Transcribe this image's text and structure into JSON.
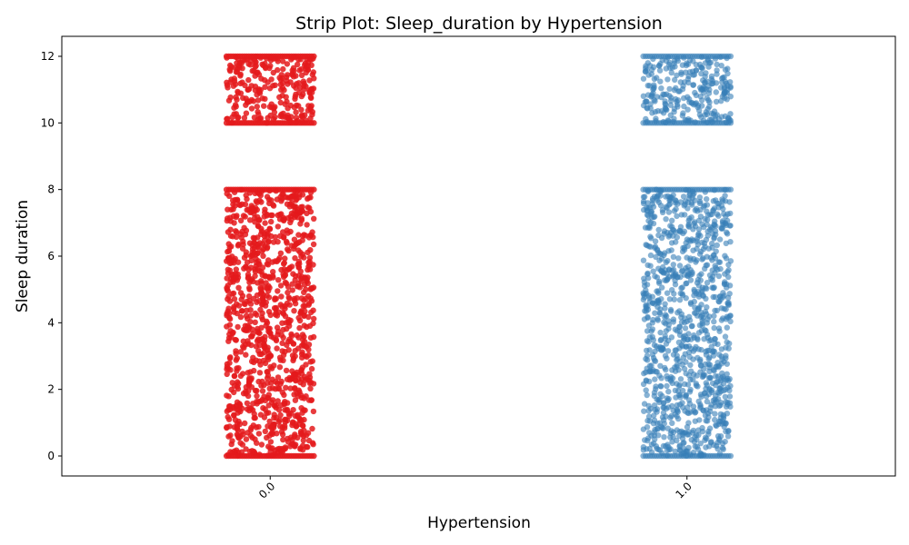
{
  "chart_data": {
    "type": "scatter",
    "subtype": "strip",
    "title": "Strip Plot: Sleep_duration by Hypertension",
    "xlabel": "Hypertension",
    "ylabel": "Sleep duration",
    "categories": [
      "0.0",
      "1.0"
    ],
    "ylim": [
      -0.6,
      12.6
    ],
    "yticks": [
      0,
      2,
      4,
      6,
      8,
      10,
      12
    ],
    "grid": false,
    "legend": "none",
    "jitter_halfwidth": 0.105,
    "series": [
      {
        "category": "0.0",
        "color": "#e41a1c",
        "ranges": [
          [
            0,
            8
          ],
          [
            10,
            12
          ]
        ]
      },
      {
        "category": "1.0",
        "color": "#377eb8",
        "ranges": [
          [
            0,
            8
          ],
          [
            10,
            12
          ]
        ]
      }
    ]
  }
}
